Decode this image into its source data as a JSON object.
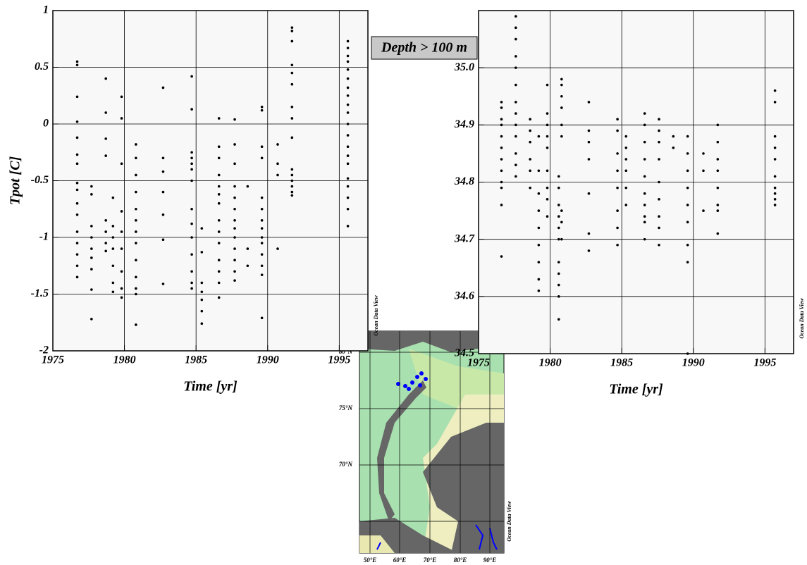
{
  "chart_data": [
    {
      "type": "scatter",
      "y_label": "Tpot [C]",
      "x_label": "Time [yr]",
      "watermark": "Ocean Data View",
      "color": "#000000",
      "grid": true,
      "xlim": [
        1975,
        1997
      ],
      "xticks": [
        1975,
        1980,
        1985,
        1990,
        1995
      ],
      "ylim": [
        -2,
        1
      ],
      "yticks": [
        -2,
        -1.5,
        -1,
        -0.5,
        0,
        0.5,
        1
      ],
      "series": [
        {
          "x": 1976.7,
          "values": [
            0.55,
            0.52,
            0.24,
            0.02,
            -0.12,
            -0.27,
            -0.35,
            -0.52,
            -0.58,
            -0.7,
            -0.8,
            -0.95,
            -1.05,
            -1.15,
            -1.25,
            -1.35
          ]
        },
        {
          "x": 1977.7,
          "values": [
            -0.55,
            -0.62,
            -0.9,
            -1.0,
            -1.1,
            -1.18,
            -1.28,
            -1.46,
            -1.72
          ]
        },
        {
          "x": 1978.7,
          "values": [
            0.4,
            0.1,
            -0.13,
            -0.28,
            -0.85,
            -0.95,
            -1.05,
            -1.12
          ]
        },
        {
          "x": 1979.2,
          "values": [
            -0.65,
            -0.9,
            -1.0,
            -1.1,
            -1.25,
            -1.4,
            -1.48
          ]
        },
        {
          "x": 1979.8,
          "values": [
            0.24,
            0.05,
            -0.35,
            -0.77,
            -0.95,
            -1.1,
            -1.3,
            -1.45,
            -1.53
          ]
        },
        {
          "x": 1980.8,
          "values": [
            -0.18,
            -0.3,
            -0.45,
            -0.6,
            -0.75,
            -0.85,
            -0.95,
            -1.05,
            -1.2,
            -1.35,
            -1.45,
            -1.5,
            -1.77
          ]
        },
        {
          "x": 1982.7,
          "values": [
            0.32,
            -0.3,
            -0.42,
            -0.6,
            -0.8,
            -1.02,
            -1.41
          ]
        },
        {
          "x": 1984.7,
          "values": [
            0.42,
            0.13,
            -0.25,
            -0.3,
            -0.35,
            -0.4,
            -0.5,
            -0.75,
            -0.88,
            -1.0,
            -1.15,
            -1.3,
            -1.4,
            -1.45
          ]
        },
        {
          "x": 1985.4,
          "values": [
            -0.92,
            -1.13,
            -1.4,
            -1.48,
            -1.55,
            -1.65,
            -1.76
          ]
        },
        {
          "x": 1986.6,
          "values": [
            0.05,
            -0.2,
            -0.3,
            -0.45,
            -0.55,
            -0.62,
            -0.7,
            -0.85,
            -0.95,
            -1.05,
            -1.2,
            -1.3,
            -1.4,
            -1.53
          ]
        },
        {
          "x": 1987.7,
          "values": [
            0.04,
            -0.18,
            -0.35,
            -0.55,
            -0.65,
            -0.75,
            -0.85,
            -0.92,
            -1.0,
            -1.1,
            -1.2,
            -1.3,
            -1.38
          ]
        },
        {
          "x": 1988.6,
          "values": [
            -0.55,
            -1.1,
            -1.25
          ]
        },
        {
          "x": 1989.6,
          "values": [
            0.15,
            0.12,
            -0.2,
            -0.3,
            -0.65,
            -0.75,
            -0.85,
            -0.92,
            -1.0,
            -1.05,
            -1.15,
            -1.25,
            -1.33,
            -1.71
          ]
        },
        {
          "x": 1990.7,
          "values": [
            -0.18,
            -0.35,
            -0.45,
            -1.1
          ]
        },
        {
          "x": 1991.7,
          "values": [
            0.85,
            0.82,
            0.73,
            0.52,
            0.45,
            0.35,
            0.15,
            0.05,
            -0.12,
            -0.4,
            -0.45,
            -0.5,
            -0.55,
            -0.6,
            -0.63
          ]
        },
        {
          "x": 1995.6,
          "values": [
            0.73,
            0.67,
            0.6,
            0.55,
            0.48,
            0.4,
            0.32,
            0.25,
            0.17,
            0.1,
            0,
            -0.1,
            -0.2,
            -0.28,
            -0.35,
            -0.48,
            -0.55,
            -0.65,
            -0.75,
            -0.9
          ]
        }
      ]
    },
    {
      "type": "scatter",
      "x_label": "Time [yr]",
      "watermark": "Ocean Data View",
      "color": "#000000",
      "grid": true,
      "xlim": [
        1975,
        1997
      ],
      "xticks": [
        1975,
        1980,
        1985,
        1990,
        1995
      ],
      "ylim": [
        34.5,
        35.1
      ],
      "yticks": [
        34.5,
        34.6,
        34.7,
        34.8,
        34.9,
        {
          "value": 35,
          "label": "35.0"
        }
      ],
      "series": [
        {
          "x": 1976.6,
          "values": [
            34.94,
            34.93,
            34.91,
            34.9,
            34.88,
            34.86,
            34.84,
            34.82,
            34.8,
            34.79,
            34.76,
            34.67
          ]
        },
        {
          "x": 1977.6,
          "values": [
            35.09,
            35.07,
            35.05,
            35.02,
            35.0,
            34.97,
            34.94,
            34.92,
            34.9,
            34.88,
            34.85,
            34.83,
            34.81
          ]
        },
        {
          "x": 1978.6,
          "values": [
            34.91,
            34.89,
            34.87,
            34.84,
            34.82,
            34.79
          ]
        },
        {
          "x": 1979.2,
          "values": [
            34.88,
            34.82,
            34.78,
            34.75,
            34.72,
            34.69,
            34.66,
            34.63,
            34.61
          ]
        },
        {
          "x": 1979.8,
          "values": [
            34.97,
            34.92,
            34.9,
            34.88,
            34.86,
            34.82,
            34.79,
            34.77,
            34.74
          ]
        },
        {
          "x": 1980.6,
          "values": [
            34.81,
            34.79,
            34.76,
            34.74,
            34.72,
            34.7,
            34.66,
            34.64,
            34.62,
            34.6,
            34.56
          ]
        },
        {
          "x": 1980.8,
          "values": [
            34.98,
            34.97,
            34.95,
            34.93,
            34.9,
            34.88,
            34.75,
            34.73,
            34.7
          ]
        },
        {
          "x": 1982.7,
          "values": [
            34.94,
            34.89,
            34.87,
            34.84,
            34.78,
            34.71,
            34.68
          ]
        },
        {
          "x": 1984.7,
          "values": [
            34.91,
            34.89,
            34.85,
            34.82,
            34.79,
            34.75,
            34.72,
            34.69
          ]
        },
        {
          "x": 1985.3,
          "values": [
            34.88,
            34.86,
            34.84,
            34.82,
            34.79,
            34.76
          ]
        },
        {
          "x": 1986.6,
          "values": [
            34.92,
            34.9,
            34.87,
            34.84,
            34.81,
            34.78,
            34.76,
            34.74,
            34.73,
            34.7
          ]
        },
        {
          "x": 1987.6,
          "values": [
            34.91,
            34.89,
            34.87,
            34.84,
            34.8,
            34.77,
            34.74,
            34.72,
            34.69
          ]
        },
        {
          "x": 1988.6,
          "values": [
            34.88,
            34.86
          ]
        },
        {
          "x": 1989.6,
          "values": [
            34.88,
            34.85,
            34.82,
            34.79,
            34.76,
            34.73,
            34.69,
            34.66,
            34.5
          ]
        },
        {
          "x": 1990.7,
          "values": [
            34.85,
            34.82,
            34.75
          ]
        },
        {
          "x": 1991.7,
          "values": [
            34.9,
            34.87,
            34.84,
            34.82,
            34.79,
            34.76,
            34.75,
            34.71
          ]
        },
        {
          "x": 1995.7,
          "values": [
            34.96,
            34.94,
            34.88,
            34.86,
            34.84,
            34.81,
            34.79,
            34.78,
            34.77,
            34.76
          ]
        }
      ]
    }
  ],
  "annotation": "Depth > 100 m",
  "map": {
    "lat_labels": [
      "80°N",
      "75°N",
      "70°N"
    ],
    "lon_labels": [
      "50°E",
      "60°E",
      "70°E",
      "80°E",
      "90°E"
    ],
    "watermark": "Ocean Data View"
  }
}
